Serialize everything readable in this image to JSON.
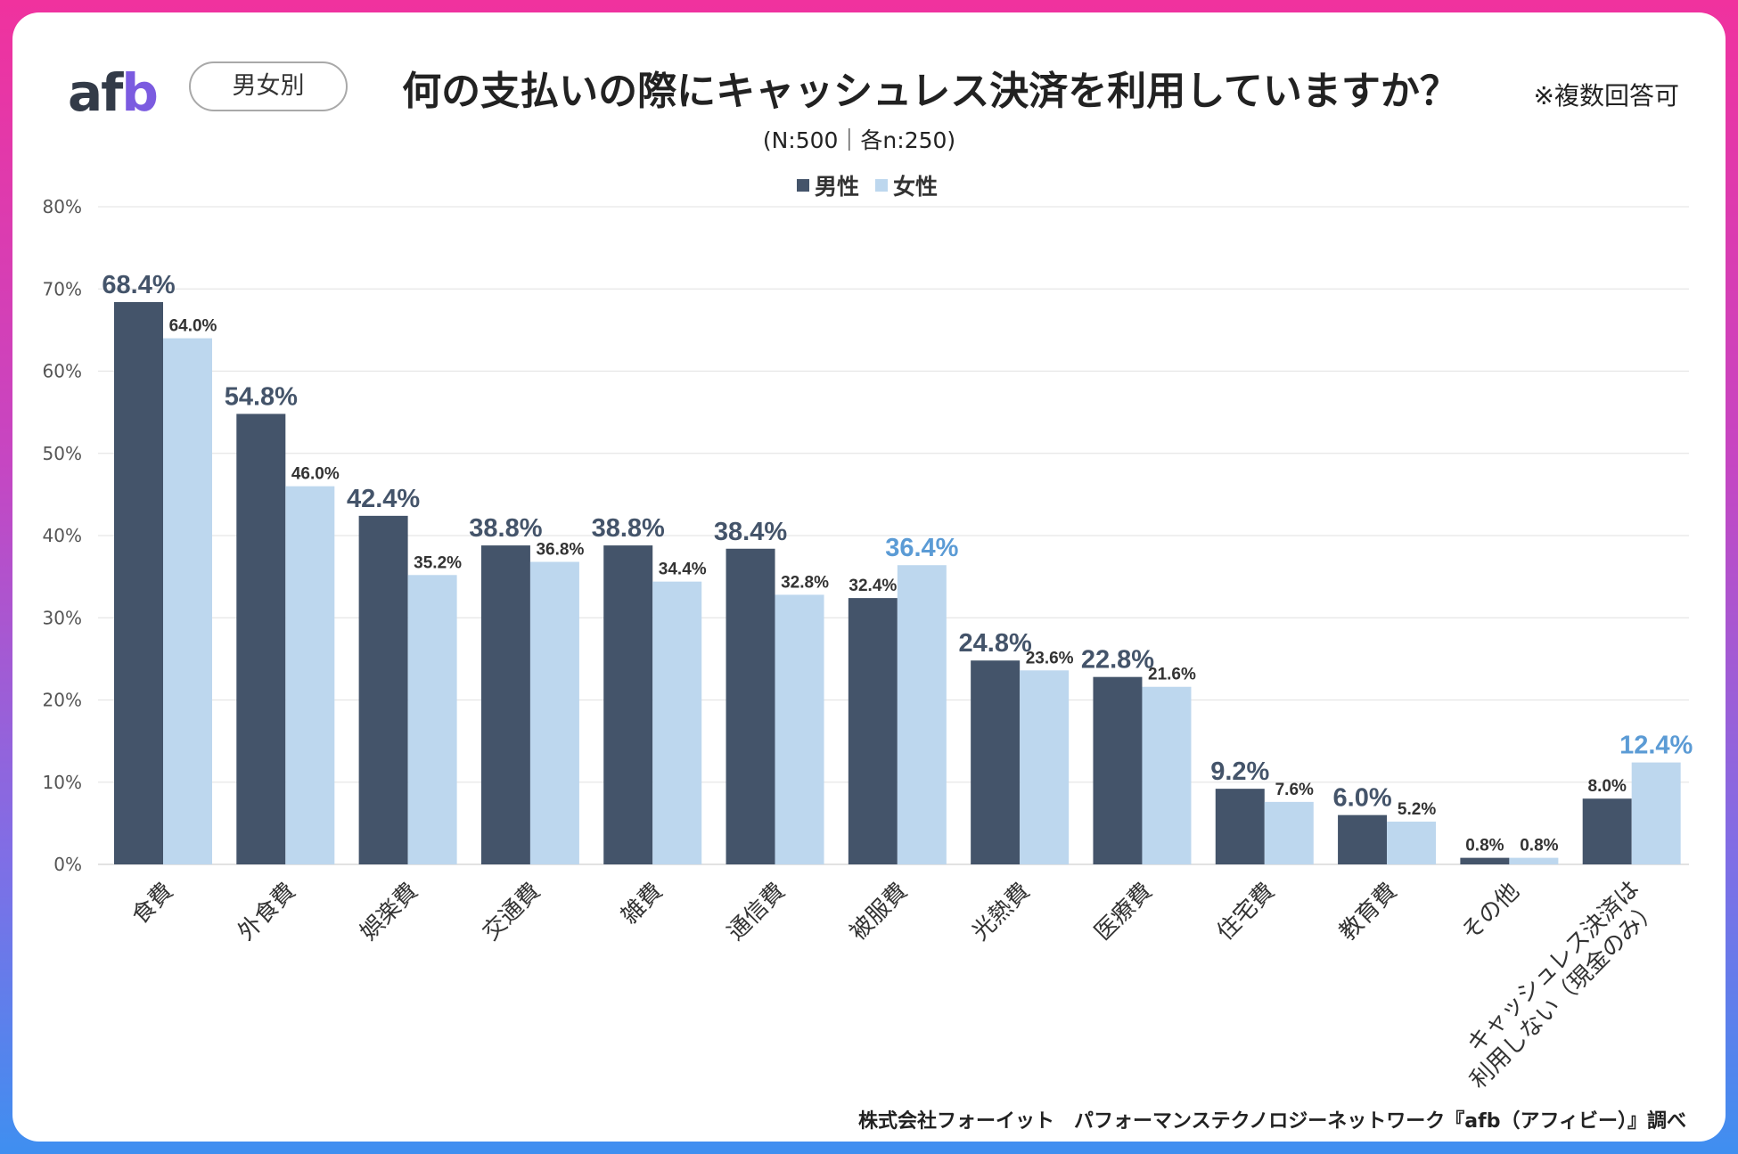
{
  "brand": {
    "logo_text_a": "af",
    "logo_text_b": "b"
  },
  "tag_label": "男女別",
  "title": "何の支払いの際にキャッシュレス決済を利用していますか？",
  "note": "※複数回答可",
  "subtitle": "(N:500｜各n:250)",
  "source": "株式会社フォーイット　パフォーマンステクノロジーネットワーク『afb（アフィビー）』調べ",
  "colors": {
    "male": "#44546a",
    "female": "#bdd7ee",
    "highlight_female": "#5b9bd5",
    "grid": "#e6e6e6"
  },
  "chart_data": {
    "type": "bar",
    "title": "何の支払いの際にキャッシュレス決済を利用していますか？",
    "ylim": [
      0,
      80
    ],
    "yticks": [
      "0%",
      "10%",
      "20%",
      "30%",
      "40%",
      "50%",
      "60%",
      "70%",
      "80%"
    ],
    "legend_position": "top-center",
    "categories": [
      "食費",
      "外食費",
      "娯楽費",
      "交通費",
      "雑費",
      "通信費",
      "被服費",
      "光熱費",
      "医療費",
      "住宅費",
      "教育費",
      "その他",
      "キャッシュレス決済は\n利用しない（現金のみ）"
    ],
    "series": [
      {
        "name": "男性",
        "values": [
          68.4,
          54.8,
          42.4,
          38.8,
          38.8,
          38.4,
          32.4,
          24.8,
          22.8,
          9.2,
          6.0,
          0.8,
          8.0
        ]
      },
      {
        "name": "女性",
        "values": [
          64.0,
          46.0,
          35.2,
          36.8,
          34.4,
          32.8,
          36.4,
          23.6,
          21.6,
          7.6,
          5.2,
          0.8,
          12.4
        ]
      }
    ],
    "data_labels": {
      "男性": [
        "68.4%",
        "54.8%",
        "42.4%",
        "38.8%",
        "38.8%",
        "38.4%",
        "32.4%",
        "24.8%",
        "22.8%",
        "9.2%",
        "6.0%",
        "0.8%",
        "8.0%"
      ],
      "女性": [
        "64.0%",
        "46.0%",
        "35.2%",
        "36.8%",
        "34.4%",
        "32.8%",
        "36.4%",
        "23.6%",
        "21.6%",
        "7.6%",
        "5.2%",
        "0.8%",
        "12.4%"
      ]
    },
    "emphasized_labels": {
      "男性": [
        true,
        true,
        true,
        true,
        true,
        true,
        false,
        true,
        true,
        true,
        true,
        false,
        false
      ],
      "女性": [
        false,
        false,
        false,
        false,
        false,
        false,
        true,
        false,
        false,
        false,
        false,
        false,
        true
      ]
    }
  }
}
